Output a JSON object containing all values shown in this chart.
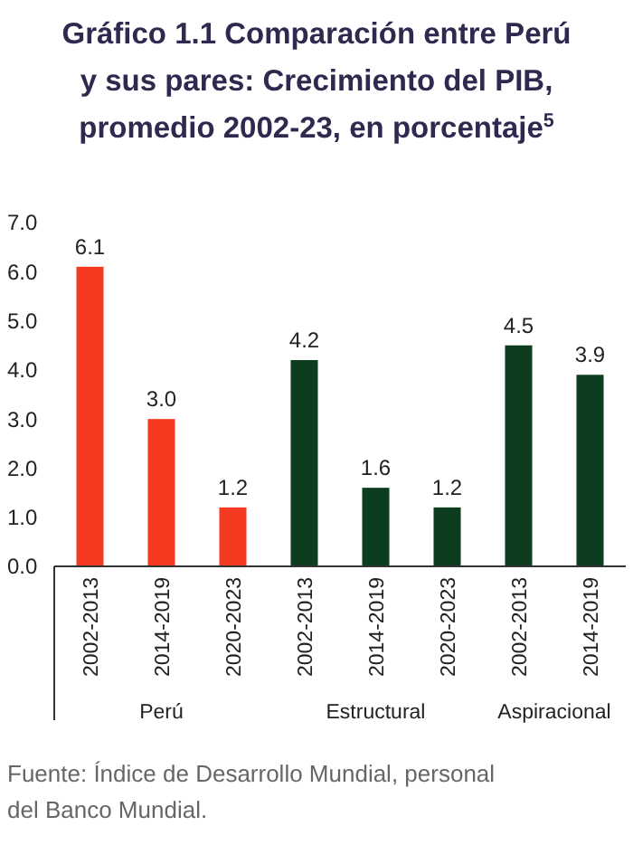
{
  "chart_data": {
    "type": "bar",
    "title": "Gráfico 1.1 Comparación entre Perú y sus pares: Crecimiento del PIB, promedio 2002-23, en porcentaje$^{5}$",
    "categories": [
      "2002-2013",
      "2014-2019",
      "2020-2023",
      "2002-2013",
      "2014-2019",
      "2020-2023",
      "2002-2013",
      "2014-2019"
    ],
    "values": [
      6.1,
      3.0,
      1.2,
      4.2,
      1.6,
      1.2,
      4.5,
      3.9
    ],
    "colors": [
      "#f53a22",
      "#f53a22",
      "#f53a22",
      "#0b3d1e",
      "#0b3d1e",
      "#0b3d1e",
      "#0b3d1e",
      "#0b3d1e"
    ],
    "value_labels": [
      "6.1",
      "3.0",
      "1.2",
      "4.2",
      "1.6",
      "1.2",
      "4.5",
      "3.9"
    ],
    "ylim": [
      0,
      7
    ],
    "yticks": [
      {
        "value": 0,
        "label": "0.0"
      },
      {
        "value": 1,
        "label": "1.0"
      },
      {
        "value": 2,
        "label": "2.0"
      },
      {
        "value": 3,
        "label": "3.0"
      },
      {
        "value": 4,
        "label": "4.0"
      },
      {
        "value": 5,
        "label": "5.0"
      },
      {
        "value": 6,
        "label": "6.0"
      },
      {
        "value": 7,
        "label": "7.0"
      }
    ],
    "annotations": [
      "Perú",
      "Estructural",
      "Aspiracional",
      "Fuente: Índice de Desarrollo Mundial, personal del Banco Mundial."
    ],
    "grid": false
  }
}
